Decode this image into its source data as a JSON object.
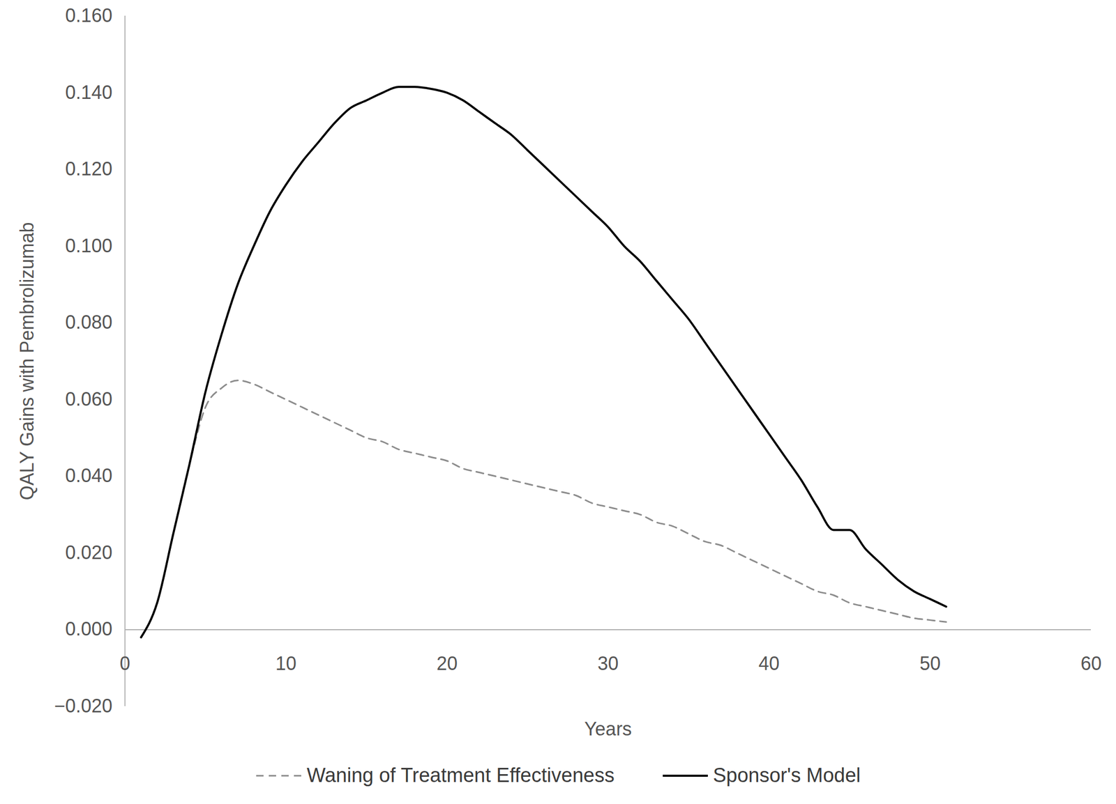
{
  "chart_data": {
    "type": "line",
    "x_label": "Years",
    "y_label": "QALY Gains with Pembrolizumab",
    "xlim": [
      0,
      60
    ],
    "xticks": [
      0,
      10,
      20,
      30,
      40,
      50,
      60
    ],
    "ylim": [
      -0.02,
      0.16
    ],
    "yticks": [
      -0.02,
      0,
      0.02,
      0.04,
      0.06,
      0.08,
      0.1,
      0.12,
      0.14,
      0.16
    ],
    "grid": false,
    "legend": "bottom",
    "x": [
      1,
      2,
      3,
      4,
      5,
      6,
      7,
      8,
      9,
      10,
      11,
      12,
      13,
      14,
      15,
      16,
      17,
      18,
      19,
      20,
      21,
      22,
      23,
      24,
      25,
      26,
      27,
      28,
      29,
      30,
      31,
      32,
      33,
      34,
      35,
      36,
      37,
      38,
      39,
      40,
      41,
      42,
      43,
      44,
      45,
      46,
      47,
      48,
      49,
      50,
      51
    ],
    "series": [
      {
        "name": "Waning of Treatment Effectiveness",
        "color": "#8c8c8c",
        "line_style": "dashed",
        "values": [
          -0.002,
          0.007,
          0.025,
          0.043,
          0.058,
          0.063,
          0.065,
          0.064,
          0.062,
          0.06,
          0.058,
          0.056,
          0.054,
          0.052,
          0.05,
          0.049,
          0.047,
          0.046,
          0.045,
          0.044,
          0.042,
          0.041,
          0.04,
          0.039,
          0.038,
          0.037,
          0.036,
          0.035,
          0.033,
          0.032,
          0.031,
          0.03,
          0.028,
          0.027,
          0.025,
          0.023,
          0.022,
          0.02,
          0.018,
          0.016,
          0.014,
          0.012,
          0.01,
          0.009,
          0.007,
          0.006,
          0.005,
          0.004,
          0.003,
          0.0025,
          0.002
        ]
      },
      {
        "name": "Sponsor's Model",
        "color": "#000000",
        "line_style": "solid",
        "values": [
          -0.002,
          0.007,
          0.025,
          0.043,
          0.062,
          0.077,
          0.09,
          0.1,
          0.109,
          0.116,
          0.122,
          0.127,
          0.132,
          0.136,
          0.138,
          0.14,
          0.1415,
          0.1415,
          0.141,
          0.14,
          0.138,
          0.135,
          0.132,
          0.129,
          0.125,
          0.121,
          0.117,
          0.113,
          0.109,
          0.105,
          0.1,
          0.096,
          0.091,
          0.086,
          0.081,
          0.075,
          0.069,
          0.063,
          0.057,
          0.051,
          0.045,
          0.039,
          0.032,
          0.026,
          0.026,
          0.021,
          0.017,
          0.013,
          0.01,
          0.008,
          0.006
        ]
      }
    ]
  }
}
